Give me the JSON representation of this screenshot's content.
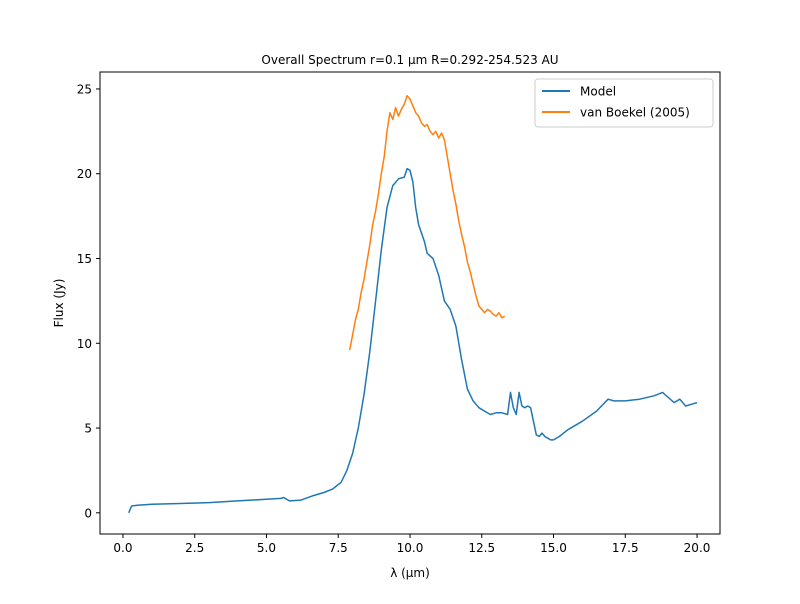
{
  "chart_data": {
    "type": "line",
    "title": "Overall Spectrum r=0.1 μm R=0.292-254.523 AU",
    "xlabel": "λ (μm)",
    "ylabel": "Flux (Jy)",
    "xlim": [
      -0.8,
      20.8
    ],
    "ylim": [
      -1.25,
      26.0
    ],
    "xticks": [
      0.0,
      2.5,
      5.0,
      7.5,
      10.0,
      12.5,
      15.0,
      17.5,
      20.0
    ],
    "xtick_labels": [
      "0.0",
      "2.5",
      "5.0",
      "7.5",
      "10.0",
      "12.5",
      "15.0",
      "17.5",
      "20.0"
    ],
    "yticks": [
      0,
      5,
      10,
      15,
      20,
      25
    ],
    "ytick_labels": [
      "0",
      "5",
      "10",
      "15",
      "20",
      "25"
    ],
    "grid": false,
    "legend_position": "top-right",
    "series": [
      {
        "name": "Model",
        "color": "#1f77b4",
        "x": [
          0.2,
          0.3,
          0.5,
          1.0,
          2.0,
          3.0,
          4.0,
          5.0,
          5.5,
          5.6,
          5.8,
          6.2,
          6.6,
          7.0,
          7.3,
          7.6,
          7.8,
          8.0,
          8.2,
          8.4,
          8.6,
          8.8,
          9.0,
          9.2,
          9.4,
          9.6,
          9.8,
          9.9,
          10.0,
          10.1,
          10.2,
          10.3,
          10.4,
          10.5,
          10.6,
          10.8,
          11.0,
          11.2,
          11.4,
          11.6,
          11.8,
          12.0,
          12.2,
          12.4,
          12.6,
          12.8,
          13.0,
          13.2,
          13.4,
          13.5,
          13.6,
          13.7,
          13.8,
          13.9,
          14.0,
          14.1,
          14.2,
          14.4,
          14.5,
          14.6,
          14.7,
          14.8,
          14.9,
          15.0,
          15.2,
          15.5,
          16.0,
          16.5,
          16.9,
          17.1,
          17.5,
          18.0,
          18.5,
          18.8,
          19.0,
          19.2,
          19.4,
          19.6,
          19.8,
          20.0
        ],
        "y": [
          0.0,
          0.4,
          0.45,
          0.5,
          0.55,
          0.6,
          0.7,
          0.8,
          0.85,
          0.9,
          0.7,
          0.75,
          1.0,
          1.2,
          1.4,
          1.8,
          2.5,
          3.5,
          5.0,
          7.0,
          9.5,
          12.5,
          15.5,
          18.0,
          19.3,
          19.7,
          19.8,
          20.3,
          20.2,
          19.5,
          18.0,
          17.0,
          16.5,
          16.0,
          15.3,
          15.0,
          14.0,
          12.5,
          12.0,
          11.0,
          9.0,
          7.3,
          6.6,
          6.2,
          6.0,
          5.8,
          5.9,
          5.9,
          5.8,
          7.1,
          6.2,
          5.8,
          7.1,
          6.3,
          6.2,
          6.3,
          6.2,
          4.6,
          4.5,
          4.7,
          4.5,
          4.4,
          4.3,
          4.3,
          4.5,
          4.9,
          5.4,
          6.0,
          6.7,
          6.6,
          6.6,
          6.7,
          6.9,
          7.1,
          6.8,
          6.5,
          6.7,
          6.3,
          6.4,
          6.5
        ]
      },
      {
        "name": "van Boekel (2005)",
        "color": "#ff7f0e",
        "x": [
          7.9,
          8.0,
          8.1,
          8.2,
          8.3,
          8.4,
          8.5,
          8.6,
          8.7,
          8.8,
          8.9,
          9.0,
          9.1,
          9.2,
          9.3,
          9.4,
          9.5,
          9.6,
          9.7,
          9.8,
          9.9,
          10.0,
          10.1,
          10.2,
          10.3,
          10.4,
          10.5,
          10.6,
          10.7,
          10.8,
          10.9,
          11.0,
          11.1,
          11.2,
          11.3,
          11.4,
          11.5,
          11.6,
          11.7,
          11.8,
          11.9,
          12.0,
          12.1,
          12.2,
          12.3,
          12.4,
          12.5,
          12.6,
          12.7,
          12.8,
          12.9,
          13.0,
          13.1,
          13.2,
          13.3
        ],
        "y": [
          9.6,
          10.5,
          11.4,
          12.0,
          13.0,
          13.8,
          14.8,
          15.8,
          17.0,
          17.8,
          18.8,
          20.0,
          21.0,
          22.5,
          23.6,
          23.2,
          23.9,
          23.4,
          23.8,
          24.1,
          24.6,
          24.4,
          24.0,
          23.6,
          23.4,
          23.0,
          22.8,
          22.9,
          22.5,
          22.3,
          22.5,
          22.1,
          22.4,
          22.0,
          21.0,
          20.0,
          19.0,
          18.2,
          17.2,
          16.4,
          15.7,
          14.8,
          14.2,
          13.5,
          12.8,
          12.2,
          12.0,
          11.8,
          12.0,
          11.9,
          11.7,
          11.6,
          11.8,
          11.5,
          11.6
        ]
      }
    ]
  }
}
